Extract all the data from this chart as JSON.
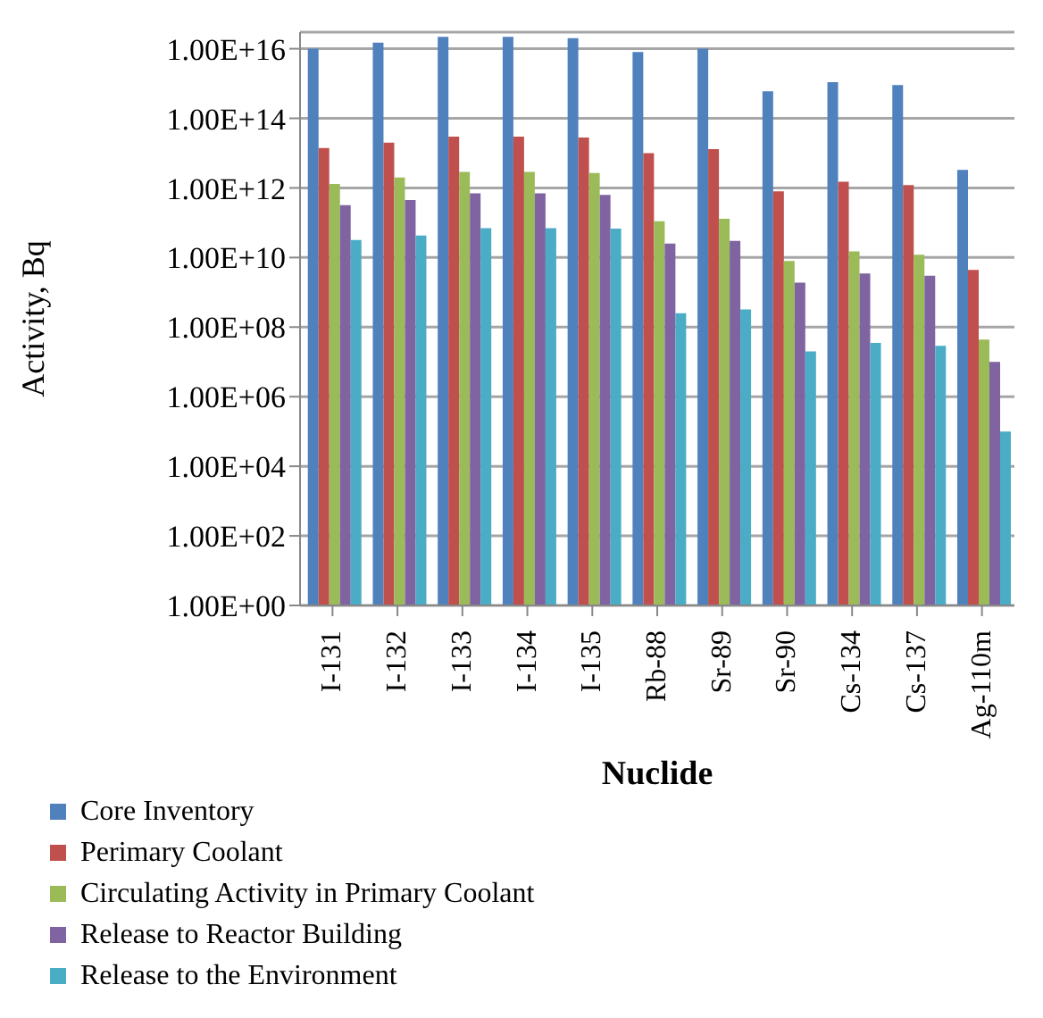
{
  "chart_data": {
    "type": "bar",
    "xlabel": "Nuclide",
    "ylabel": "Activity, Bq",
    "categories": [
      "I-131",
      "I-132",
      "I-133",
      "I-134",
      "I-135",
      "Rb-88",
      "Sr-89",
      "Sr-90",
      "Cs-134",
      "Cs-137",
      "Ag-110m"
    ],
    "series": [
      {
        "name": "Core Inventory",
        "color": "#4f81bd",
        "values": [
          1e+16,
          1.5e+16,
          2.2e+16,
          2.2e+16,
          2e+16,
          8000000000000000.0,
          1e+16,
          600000000000000.0,
          1100000000000000.0,
          900000000000000.0,
          3300000000000.0
        ]
      },
      {
        "name": "Perimary Coolant",
        "color": "#c0504d",
        "values": [
          14000000000000.0,
          20000000000000.0,
          30000000000000.0,
          30000000000000.0,
          28000000000000.0,
          10000000000000.0,
          13000000000000.0,
          800000000000.0,
          1500000000000.0,
          1200000000000.0,
          4400000000.0
        ]
      },
      {
        "name": "Circulating Activity in Primary Coolant",
        "color": "#9bbb59",
        "values": [
          1300000000000.0,
          2000000000000.0,
          2900000000000.0,
          2900000000000.0,
          2700000000000.0,
          110000000000.0,
          130000000000.0,
          8000000000.0,
          15000000000.0,
          12000000000.0,
          44000000.0
        ]
      },
      {
        "name": "Release to Reactor Building",
        "color": "#8064a2",
        "values": [
          320000000000.0,
          450000000000.0,
          700000000000.0,
          700000000000.0,
          630000000000.0,
          25000000000.0,
          30000000000.0,
          1900000000.0,
          3500000000.0,
          3000000000.0,
          10000000.0
        ]
      },
      {
        "name": "Release to the Environment",
        "color": "#4bacc6",
        "values": [
          32000000000.0,
          43000000000.0,
          70000000000.0,
          70000000000.0,
          68000000000.0,
          250000000.0,
          320000000.0,
          20000000.0,
          35000000.0,
          29000000.0,
          100000.0
        ]
      }
    ],
    "log": true,
    "ylim": [
      1,
      3e+16
    ],
    "yticks": [
      {
        "value": 1,
        "label": "1.00E+00"
      },
      {
        "value": 100,
        "label": "1.00E+02"
      },
      {
        "value": 10000,
        "label": "1.00E+04"
      },
      {
        "value": 1000000,
        "label": "1.00E+06"
      },
      {
        "value": 100000000,
        "label": "1.00E+08"
      },
      {
        "value": 10000000000,
        "label": "1.00E+10"
      },
      {
        "value": 1000000000000,
        "label": "1.00E+12"
      },
      {
        "value": 100000000000000,
        "label": "1.00E+14"
      },
      {
        "value": 10000000000000000,
        "label": "1.00E+16"
      }
    ],
    "grid": "y",
    "legend": "bottom left"
  }
}
